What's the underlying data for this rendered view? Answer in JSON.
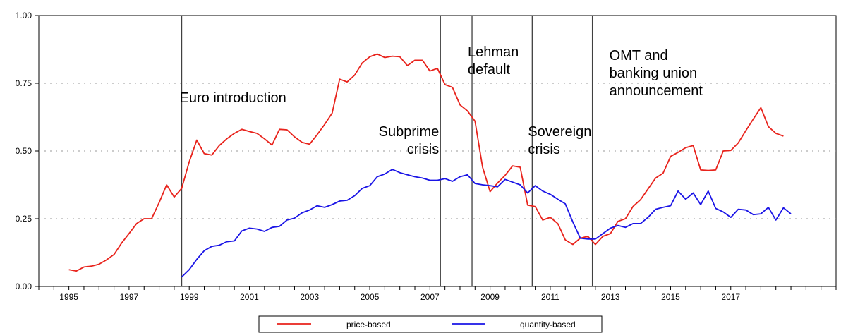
{
  "chart_data": {
    "type": "line",
    "title": "",
    "xlabel": "",
    "ylabel": "",
    "xlim": [
      1994.0,
      2020.5
    ],
    "ylim": [
      0,
      1
    ],
    "y_ticks": [
      "0.00",
      "0.25",
      "0.50",
      "0.75",
      "1.00"
    ],
    "y_tick_values": [
      0,
      0.25,
      0.5,
      0.75,
      1.0
    ],
    "x_tick_values": [
      1995,
      1997,
      1999,
      2001,
      2003,
      2005,
      2007,
      2009,
      2011,
      2013,
      2015,
      2017
    ],
    "x_tick_labels": [
      "1995",
      "1997",
      "1999",
      "2001",
      "2003",
      "2005",
      "2007",
      "2009",
      "2011",
      "2013",
      "2015",
      "2017"
    ],
    "grid": "dotted horizontal at 0.25, 0.50, 0.75",
    "legend_position": "bottom-center",
    "colors": {
      "price": "#e8231c",
      "quantity": "#1a14e6"
    },
    "events": [
      {
        "date": 1998.75,
        "label": [
          "Euro introduction"
        ]
      },
      {
        "date": 2007.35,
        "label": [
          "Subprime",
          "crisis"
        ]
      },
      {
        "date": 2008.4,
        "label": [
          "Lehman",
          "default"
        ]
      },
      {
        "date": 2010.4,
        "label": [
          "Sovereign",
          "crisis"
        ]
      },
      {
        "date": 2012.4,
        "label": [
          "OMT and",
          "banking union",
          "announcement"
        ]
      }
    ],
    "series": [
      {
        "name": "price-based",
        "color": "#e8231c",
        "points": [
          [
            1995.0,
            0.062
          ],
          [
            1995.25,
            0.057
          ],
          [
            1995.5,
            0.072
          ],
          [
            1995.75,
            0.075
          ],
          [
            1996.0,
            0.082
          ],
          [
            1996.25,
            0.098
          ],
          [
            1996.5,
            0.118
          ],
          [
            1996.75,
            0.16
          ],
          [
            1997.0,
            0.195
          ],
          [
            1997.25,
            0.232
          ],
          [
            1997.5,
            0.25
          ],
          [
            1997.75,
            0.25
          ],
          [
            1998.0,
            0.31
          ],
          [
            1998.25,
            0.375
          ],
          [
            1998.5,
            0.33
          ],
          [
            1998.75,
            0.362
          ],
          [
            1999.0,
            0.46
          ],
          [
            1999.25,
            0.54
          ],
          [
            1999.5,
            0.49
          ],
          [
            1999.75,
            0.485
          ],
          [
            2000.0,
            0.52
          ],
          [
            2000.25,
            0.545
          ],
          [
            2000.5,
            0.565
          ],
          [
            2000.75,
            0.58
          ],
          [
            2001.0,
            0.572
          ],
          [
            2001.25,
            0.565
          ],
          [
            2001.5,
            0.545
          ],
          [
            2001.75,
            0.522
          ],
          [
            2002.0,
            0.58
          ],
          [
            2002.25,
            0.578
          ],
          [
            2002.5,
            0.552
          ],
          [
            2002.75,
            0.532
          ],
          [
            2003.0,
            0.525
          ],
          [
            2003.25,
            0.56
          ],
          [
            2003.5,
            0.598
          ],
          [
            2003.75,
            0.64
          ],
          [
            2004.0,
            0.765
          ],
          [
            2004.25,
            0.755
          ],
          [
            2004.5,
            0.78
          ],
          [
            2004.75,
            0.825
          ],
          [
            2005.0,
            0.848
          ],
          [
            2005.25,
            0.858
          ],
          [
            2005.5,
            0.845
          ],
          [
            2005.75,
            0.85
          ],
          [
            2006.0,
            0.848
          ],
          [
            2006.25,
            0.815
          ],
          [
            2006.5,
            0.835
          ],
          [
            2006.75,
            0.835
          ],
          [
            2007.0,
            0.795
          ],
          [
            2007.25,
            0.805
          ],
          [
            2007.5,
            0.745
          ],
          [
            2007.75,
            0.735
          ],
          [
            2008.0,
            0.67
          ],
          [
            2008.25,
            0.648
          ],
          [
            2008.5,
            0.61
          ],
          [
            2008.75,
            0.44
          ],
          [
            2009.0,
            0.35
          ],
          [
            2009.25,
            0.382
          ],
          [
            2009.5,
            0.41
          ],
          [
            2009.75,
            0.445
          ],
          [
            2010.0,
            0.44
          ],
          [
            2010.25,
            0.3
          ],
          [
            2010.5,
            0.295
          ],
          [
            2010.75,
            0.245
          ],
          [
            2011.0,
            0.255
          ],
          [
            2011.25,
            0.232
          ],
          [
            2011.5,
            0.172
          ],
          [
            2011.75,
            0.155
          ],
          [
            2012.0,
            0.178
          ],
          [
            2012.25,
            0.185
          ],
          [
            2012.5,
            0.155
          ],
          [
            2012.75,
            0.185
          ],
          [
            2013.0,
            0.195
          ],
          [
            2013.25,
            0.24
          ],
          [
            2013.5,
            0.25
          ],
          [
            2013.75,
            0.295
          ],
          [
            2014.0,
            0.32
          ],
          [
            2014.25,
            0.36
          ],
          [
            2014.5,
            0.4
          ],
          [
            2014.75,
            0.418
          ],
          [
            2015.0,
            0.48
          ],
          [
            2015.25,
            0.495
          ],
          [
            2015.5,
            0.512
          ],
          [
            2015.75,
            0.52
          ],
          [
            2016.0,
            0.43
          ],
          [
            2016.25,
            0.428
          ],
          [
            2016.5,
            0.43
          ],
          [
            2016.75,
            0.5
          ],
          [
            2017.0,
            0.502
          ],
          [
            2017.25,
            0.53
          ],
          [
            2017.5,
            0.575
          ],
          [
            2017.75,
            0.618
          ],
          [
            2018.0,
            0.66
          ],
          [
            2018.25,
            0.59
          ],
          [
            2018.5,
            0.565
          ],
          [
            2018.75,
            0.555
          ]
        ]
      },
      {
        "name": "quantity-based",
        "color": "#1a14e6",
        "points": [
          [
            1998.75,
            0.035
          ],
          [
            1999.0,
            0.062
          ],
          [
            1999.25,
            0.1
          ],
          [
            1999.5,
            0.132
          ],
          [
            1999.75,
            0.148
          ],
          [
            2000.0,
            0.152
          ],
          [
            2000.25,
            0.165
          ],
          [
            2000.5,
            0.168
          ],
          [
            2000.75,
            0.205
          ],
          [
            2001.0,
            0.215
          ],
          [
            2001.25,
            0.212
          ],
          [
            2001.5,
            0.203
          ],
          [
            2001.75,
            0.218
          ],
          [
            2002.0,
            0.222
          ],
          [
            2002.25,
            0.245
          ],
          [
            2002.5,
            0.252
          ],
          [
            2002.75,
            0.272
          ],
          [
            2003.0,
            0.282
          ],
          [
            2003.25,
            0.298
          ],
          [
            2003.5,
            0.292
          ],
          [
            2003.75,
            0.302
          ],
          [
            2004.0,
            0.315
          ],
          [
            2004.25,
            0.318
          ],
          [
            2004.5,
            0.335
          ],
          [
            2004.75,
            0.362
          ],
          [
            2005.0,
            0.372
          ],
          [
            2005.25,
            0.405
          ],
          [
            2005.5,
            0.415
          ],
          [
            2005.75,
            0.432
          ],
          [
            2006.0,
            0.42
          ],
          [
            2006.25,
            0.412
          ],
          [
            2006.5,
            0.405
          ],
          [
            2006.75,
            0.4
          ],
          [
            2007.0,
            0.392
          ],
          [
            2007.25,
            0.392
          ],
          [
            2007.5,
            0.398
          ],
          [
            2007.75,
            0.388
          ],
          [
            2008.0,
            0.405
          ],
          [
            2008.25,
            0.412
          ],
          [
            2008.5,
            0.38
          ],
          [
            2008.75,
            0.375
          ],
          [
            2009.0,
            0.372
          ],
          [
            2009.25,
            0.368
          ],
          [
            2009.5,
            0.395
          ],
          [
            2009.75,
            0.385
          ],
          [
            2010.0,
            0.375
          ],
          [
            2010.25,
            0.345
          ],
          [
            2010.5,
            0.372
          ],
          [
            2010.75,
            0.352
          ],
          [
            2011.0,
            0.34
          ],
          [
            2011.25,
            0.322
          ],
          [
            2011.5,
            0.305
          ],
          [
            2011.75,
            0.238
          ],
          [
            2012.0,
            0.178
          ],
          [
            2012.25,
            0.175
          ],
          [
            2012.5,
            0.175
          ],
          [
            2012.75,
            0.195
          ],
          [
            2013.0,
            0.215
          ],
          [
            2013.25,
            0.225
          ],
          [
            2013.5,
            0.218
          ],
          [
            2013.75,
            0.232
          ],
          [
            2014.0,
            0.232
          ],
          [
            2014.25,
            0.255
          ],
          [
            2014.5,
            0.285
          ],
          [
            2014.75,
            0.292
          ],
          [
            2015.0,
            0.298
          ],
          [
            2015.25,
            0.352
          ],
          [
            2015.5,
            0.322
          ],
          [
            2015.75,
            0.345
          ],
          [
            2016.0,
            0.302
          ],
          [
            2016.25,
            0.352
          ],
          [
            2016.5,
            0.288
          ],
          [
            2016.75,
            0.275
          ],
          [
            2017.0,
            0.255
          ],
          [
            2017.25,
            0.285
          ],
          [
            2017.5,
            0.282
          ],
          [
            2017.75,
            0.265
          ],
          [
            2018.0,
            0.268
          ],
          [
            2018.25,
            0.292
          ],
          [
            2018.5,
            0.245
          ],
          [
            2018.75,
            0.29
          ],
          [
            2019.0,
            0.268
          ]
        ]
      }
    ]
  }
}
